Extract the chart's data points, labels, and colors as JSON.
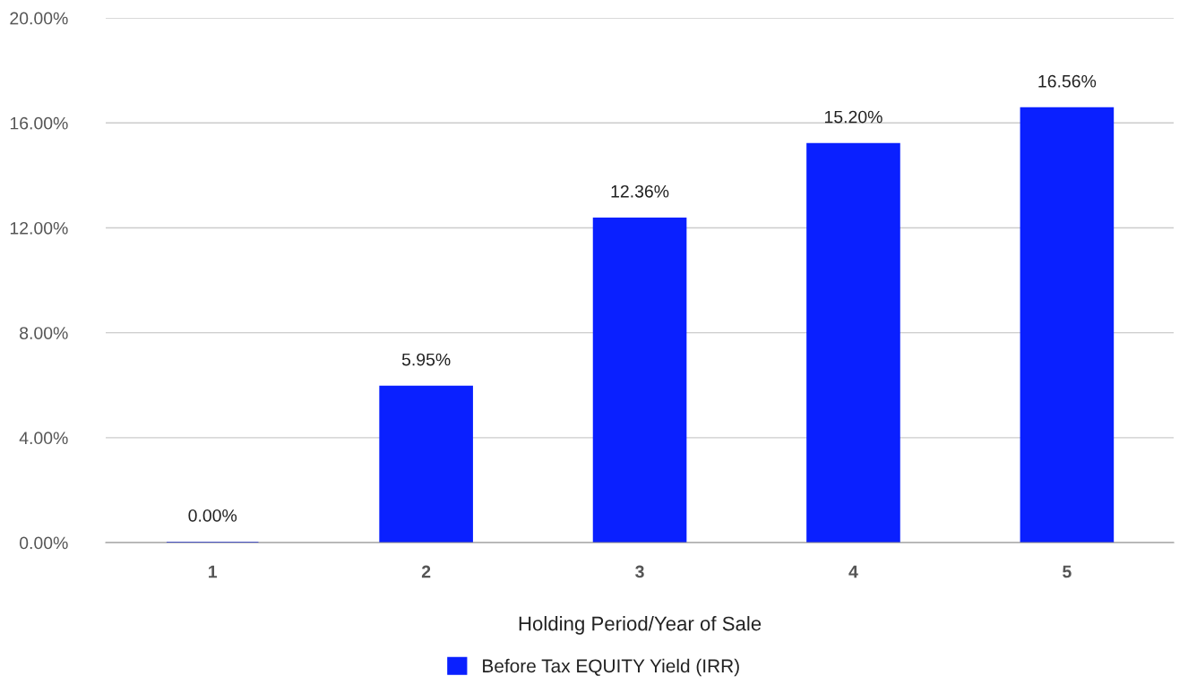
{
  "chart_data": {
    "type": "bar",
    "categories": [
      "1",
      "2",
      "3",
      "4",
      "5"
    ],
    "series": [
      {
        "name": "Before Tax EQUITY Yield (IRR)",
        "color": "#0a20ff",
        "values": [
          0,
          5.95,
          12.36,
          15.2,
          16.56
        ],
        "value_labels": [
          "0.00%",
          "5.95%",
          "12.36%",
          "15.20%",
          "16.56%"
        ]
      }
    ],
    "xlabel": "Holding Period/Year of Sale",
    "ylim": [
      0,
      20
    ],
    "yticks": [
      {
        "value": 0,
        "label": "0.00%"
      },
      {
        "value": 4,
        "label": "4.00%"
      },
      {
        "value": 8,
        "label": "8.00%"
      },
      {
        "value": 12,
        "label": "12.00%"
      },
      {
        "value": 16,
        "label": "16.00%"
      },
      {
        "value": 20,
        "label": "20.00%"
      }
    ],
    "grid": "y",
    "legend": "bottom"
  }
}
